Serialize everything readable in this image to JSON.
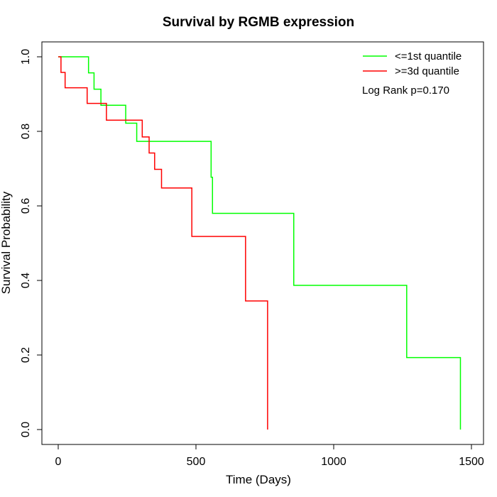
{
  "chart_data": {
    "type": "line",
    "step": true,
    "title": "Survival by RGMB expression",
    "xlabel": "Time (Days)",
    "ylabel": "Survival Probability",
    "xlim": [
      0,
      1500
    ],
    "ylim": [
      0,
      1.0
    ],
    "xticks": [
      0,
      500,
      1000,
      1500
    ],
    "yticks": [
      0.0,
      0.2,
      0.4,
      0.6,
      0.8,
      1.0
    ],
    "xtick_labels": [
      "0",
      "500",
      "1000",
      "1500"
    ],
    "ytick_labels": [
      "0.0",
      "0.2",
      "0.4",
      "0.6",
      "0.8",
      "1.0"
    ],
    "grid": false,
    "legend_position": "top-right",
    "annotation": "Log Rank p=0.170",
    "series": [
      {
        "name": "<=1st quantile",
        "color": "#00ff00",
        "points": [
          [
            0,
            1.0
          ],
          [
            110,
            0.957
          ],
          [
            130,
            0.913
          ],
          [
            155,
            0.87
          ],
          [
            245,
            0.822
          ],
          [
            285,
            0.773
          ],
          [
            555,
            0.677
          ],
          [
            560,
            0.58
          ],
          [
            855,
            0.387
          ],
          [
            1265,
            0.193
          ],
          [
            1460,
            0.0
          ]
        ]
      },
      {
        "name": ">=3d quantile",
        "color": "#ff0000",
        "points": [
          [
            0,
            1.0
          ],
          [
            10,
            0.958
          ],
          [
            25,
            0.917
          ],
          [
            105,
            0.875
          ],
          [
            175,
            0.83
          ],
          [
            305,
            0.785
          ],
          [
            330,
            0.742
          ],
          [
            350,
            0.698
          ],
          [
            375,
            0.648
          ],
          [
            485,
            0.518
          ],
          [
            680,
            0.345
          ],
          [
            760,
            0.0
          ]
        ]
      }
    ]
  }
}
